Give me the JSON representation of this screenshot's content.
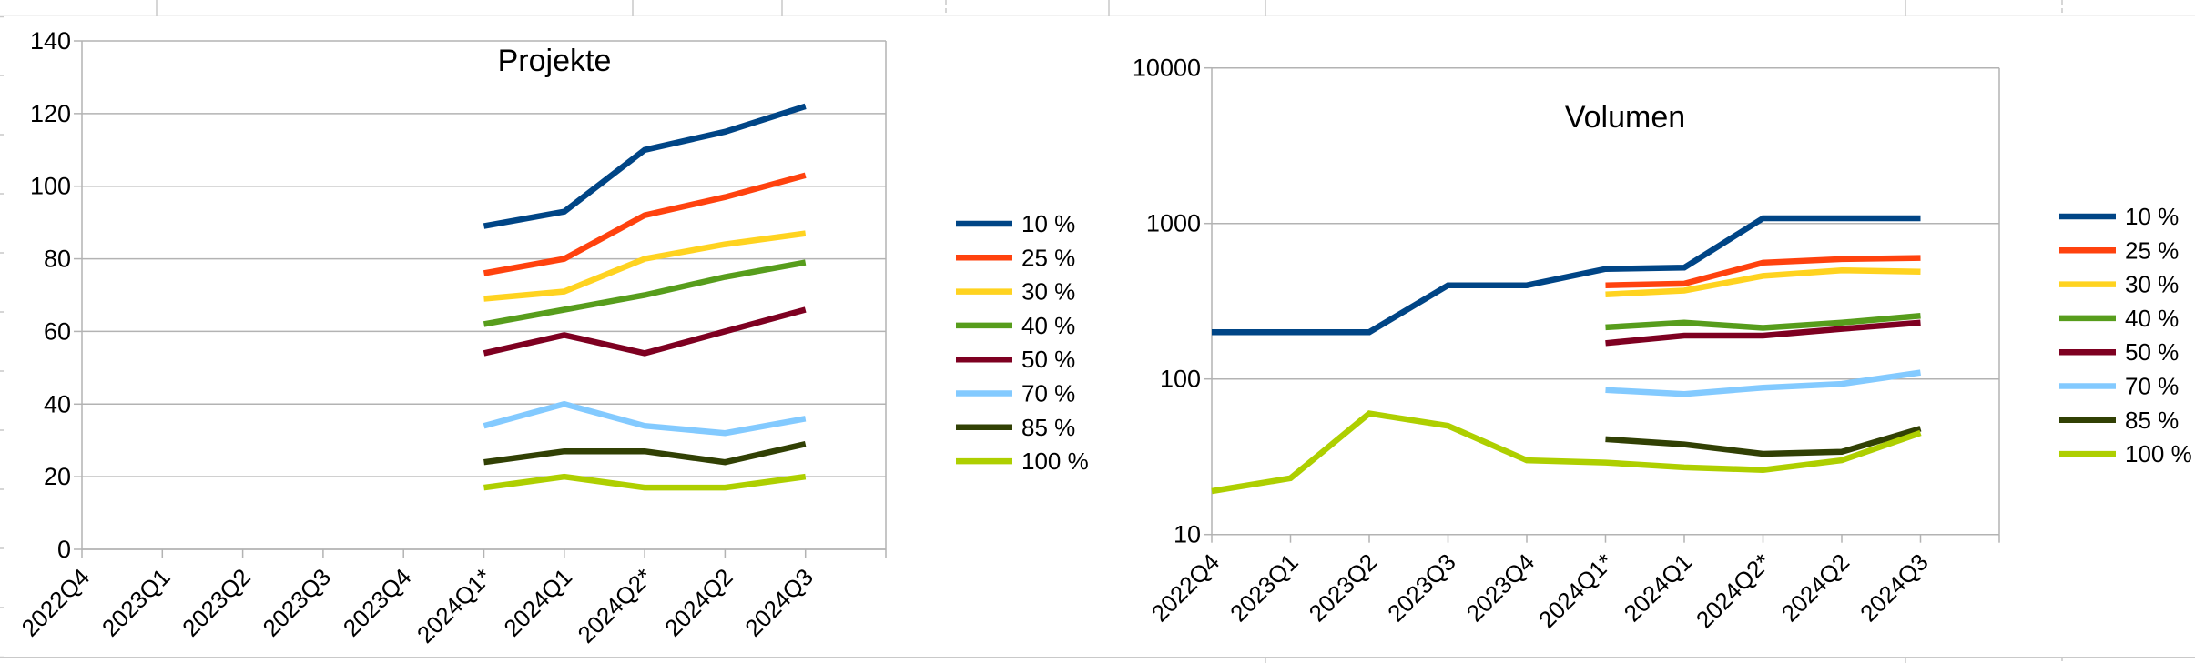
{
  "chart_data": [
    {
      "type": "line",
      "title": "Projekte",
      "categories": [
        "2022Q4",
        "2023Q1",
        "2023Q2",
        "2023Q3",
        "2023Q4",
        "2024Q1*",
        "2024Q1",
        "2024Q2*",
        "2024Q2",
        "2024Q3"
      ],
      "y_axis": {
        "scale": "linear",
        "min": 0,
        "max": 140,
        "step": 20,
        "ticks": [
          0,
          20,
          40,
          60,
          80,
          100,
          120,
          140
        ]
      },
      "xlabel": "",
      "ylabel": "",
      "grid": "horizontal-major",
      "legend_position": "right",
      "legend": [
        "10 %",
        "25 %",
        "30 %",
        "40 %",
        "50 %",
        "70 %",
        "85 %",
        "100 %"
      ],
      "series": [
        {
          "name": "10 %",
          "color": "#004586",
          "values": [
            null,
            null,
            null,
            null,
            null,
            89,
            93,
            110,
            115,
            122
          ]
        },
        {
          "name": "25 %",
          "color": "#FF420E",
          "values": [
            null,
            null,
            null,
            null,
            null,
            76,
            80,
            92,
            97,
            103
          ]
        },
        {
          "name": "30 %",
          "color": "#FFD320",
          "values": [
            null,
            null,
            null,
            null,
            null,
            69,
            71,
            80,
            84,
            87
          ]
        },
        {
          "name": "40 %",
          "color": "#579D1C",
          "values": [
            null,
            null,
            null,
            null,
            null,
            62,
            66,
            70,
            75,
            79
          ]
        },
        {
          "name": "50 %",
          "color": "#7E0021",
          "values": [
            null,
            null,
            null,
            null,
            null,
            54,
            59,
            54,
            60,
            66
          ]
        },
        {
          "name": "70 %",
          "color": "#83CAFF",
          "values": [
            null,
            null,
            null,
            null,
            null,
            34,
            40,
            34,
            32,
            36
          ]
        },
        {
          "name": "85 %",
          "color": "#314004",
          "values": [
            null,
            null,
            null,
            null,
            null,
            24,
            27,
            27,
            24,
            29
          ]
        },
        {
          "name": "100 %",
          "color": "#AECF00",
          "values": [
            null,
            null,
            null,
            null,
            null,
            17,
            20,
            17,
            17,
            20
          ]
        }
      ]
    },
    {
      "type": "line",
      "title": "Volumen",
      "categories": [
        "2022Q4",
        "2023Q1",
        "2023Q2",
        "2023Q3",
        "2023Q4",
        "2024Q1*",
        "2024Q1",
        "2024Q2*",
        "2024Q2",
        "2024Q3"
      ],
      "y_axis": {
        "scale": "log",
        "min": 10,
        "max": 10000,
        "ticks": [
          10,
          100,
          1000,
          10000
        ]
      },
      "xlabel": "",
      "ylabel": "",
      "grid": "horizontal-major",
      "legend_position": "right",
      "legend": [
        "10 %",
        "25 %",
        "30 %",
        "40 %",
        "50 %",
        "70 %",
        "85 %",
        "100 %"
      ],
      "series": [
        {
          "name": "10 %",
          "color": "#004586",
          "values": [
            200,
            200,
            200,
            400,
            400,
            510,
            520,
            1080,
            1080,
            1080
          ]
        },
        {
          "name": "25 %",
          "color": "#FF420E",
          "values": [
            null,
            null,
            null,
            null,
            null,
            400,
            410,
            560,
            590,
            600
          ]
        },
        {
          "name": "30 %",
          "color": "#FFD320",
          "values": [
            null,
            null,
            null,
            null,
            null,
            350,
            370,
            460,
            500,
            490
          ]
        },
        {
          "name": "40 %",
          "color": "#579D1C",
          "values": [
            null,
            null,
            null,
            null,
            null,
            215,
            230,
            213,
            230,
            255
          ]
        },
        {
          "name": "50 %",
          "color": "#7E0021",
          "values": [
            null,
            null,
            null,
            null,
            null,
            170,
            190,
            190,
            210,
            230
          ]
        },
        {
          "name": "70 %",
          "color": "#83CAFF",
          "values": [
            null,
            null,
            null,
            null,
            null,
            85,
            80,
            88,
            93,
            110
          ]
        },
        {
          "name": "85 %",
          "color": "#314004",
          "values": [
            null,
            null,
            null,
            null,
            null,
            41,
            38,
            33,
            34,
            48
          ]
        },
        {
          "name": "100 %",
          "color": "#AECF00",
          "values": [
            19,
            23,
            60,
            50,
            30,
            29,
            27,
            26,
            30,
            45
          ]
        }
      ]
    }
  ],
  "style_colors": {
    "chart_grid": "#b3b3b3",
    "spreadsheet_grid": "#c9c9c9",
    "text": "#000000",
    "background": "#ffffff"
  }
}
